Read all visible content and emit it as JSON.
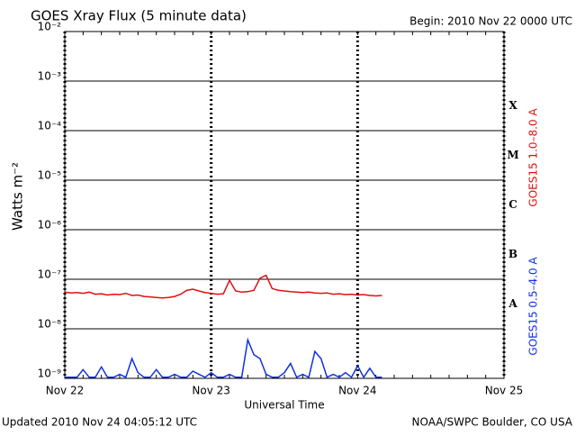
{
  "chart_data": {
    "type": "line",
    "title": "GOES Xray Flux (5 minute data)",
    "subtitle": "Begin:  2010 Nov 22 0000 UTC",
    "ylabel": "Watts m⁻²",
    "xlabel": "Universal Time",
    "updated": "Updated 2010 Nov 24 04:05:12 UTC",
    "source": "NOAA/SWPC Boulder, CO USA",
    "flare_classes": [
      "X",
      "M",
      "C",
      "B",
      "A"
    ],
    "log_y": true,
    "grid": true,
    "xlim": [
      0,
      72
    ],
    "xticks": [
      {
        "value": 0,
        "label": "Nov 22"
      },
      {
        "value": 24,
        "label": "Nov 23"
      },
      {
        "value": 48,
        "label": "Nov 24"
      },
      {
        "value": 72,
        "label": "Nov 25"
      }
    ],
    "ylim": [
      1e-09,
      0.01
    ],
    "yticks": [
      {
        "value": 1e-09,
        "label": "10⁻⁹"
      },
      {
        "value": 1e-08,
        "label": "10⁻⁸"
      },
      {
        "value": 1e-07,
        "label": "10⁻⁷"
      },
      {
        "value": 1e-06,
        "label": "10⁻⁶"
      },
      {
        "value": 1e-05,
        "label": "10⁻⁵"
      },
      {
        "value": 0.0001,
        "label": "10⁻⁴"
      },
      {
        "value": 0.001,
        "label": "10⁻³"
      },
      {
        "value": 0.01,
        "label": "10⁻²"
      }
    ],
    "x": [
      0,
      1,
      2,
      3,
      4,
      5,
      6,
      7,
      8,
      9,
      10,
      11,
      12,
      13,
      14,
      15,
      16,
      17,
      18,
      19,
      20,
      21,
      22,
      23,
      24,
      25,
      26,
      27,
      28,
      29,
      30,
      31,
      32,
      33,
      34,
      35,
      36,
      37,
      38,
      39,
      40,
      41,
      42,
      43,
      44,
      45,
      46,
      47,
      48,
      49,
      50,
      51,
      52
    ],
    "series": [
      {
        "name": "GOES15 1.0–8.0 A",
        "color": "#e01010",
        "values": [
          5.5e-08,
          5.3e-08,
          5.4e-08,
          5.2e-08,
          5.5e-08,
          5e-08,
          5.1e-08,
          4.8e-08,
          5e-08,
          4.9e-08,
          5.2e-08,
          4.7e-08,
          4.8e-08,
          4.5e-08,
          4.4e-08,
          4.3e-08,
          4.2e-08,
          4.3e-08,
          4.5e-08,
          5e-08,
          6e-08,
          6.3e-08,
          5.8e-08,
          5.4e-08,
          5.2e-08,
          5e-08,
          5.1e-08,
          9.5e-08,
          5.8e-08,
          5.5e-08,
          5.6e-08,
          6e-08,
          1.05e-07,
          1.2e-07,
          6.5e-08,
          6e-08,
          5.8e-08,
          5.6e-08,
          5.5e-08,
          5.4e-08,
          5.5e-08,
          5.3e-08,
          5.2e-08,
          5.3e-08,
          5e-08,
          5.1e-08,
          4.9e-08,
          5e-08,
          4.8e-08,
          4.9e-08,
          4.7e-08,
          4.6e-08,
          4.7e-08
        ]
      },
      {
        "name": "GOES15 0.5–4.0 A",
        "color": "#1030e0",
        "values": [
          1.05e-09,
          1.05e-09,
          1.05e-09,
          1.5e-09,
          1.05e-09,
          1.05e-09,
          1.7e-09,
          1.05e-09,
          1.05e-09,
          1.2e-09,
          1.05e-09,
          2.5e-09,
          1.3e-09,
          1.05e-09,
          1.05e-09,
          1.5e-09,
          1.05e-09,
          1.05e-09,
          1.2e-09,
          1.05e-09,
          1.05e-09,
          1.4e-09,
          1.2e-09,
          1.05e-09,
          1.3e-09,
          1.05e-09,
          1.05e-09,
          1.2e-09,
          1.05e-09,
          1.05e-09,
          6e-09,
          3e-09,
          2.5e-09,
          1.2e-09,
          1.05e-09,
          1.05e-09,
          1.3e-09,
          2e-09,
          1.05e-09,
          1.2e-09,
          1.05e-09,
          3.5e-09,
          2.5e-09,
          1.05e-09,
          1.2e-09,
          1.05e-09,
          1.3e-09,
          1.05e-09,
          1.8e-09,
          1.05e-09,
          1.6e-09,
          1.05e-09,
          1.05e-09
        ]
      }
    ]
  }
}
